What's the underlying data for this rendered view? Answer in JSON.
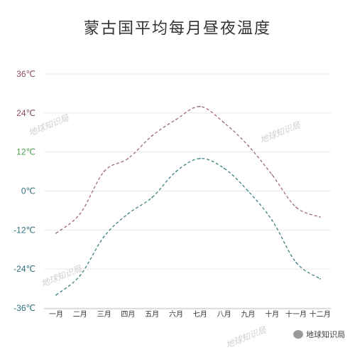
{
  "title": "蒙古国平均每月昼夜温度",
  "watermark_text": "地球知识局",
  "source_label": "地球知识局",
  "colors": {
    "day": "#9e6b72",
    "night": "#3f7f84",
    "tick_top": "#8b4b57",
    "tick_mid": "#4e9a4e",
    "tick_low": "#2e6f7c",
    "grid": "#e8e8e8"
  },
  "chart_data": {
    "type": "line",
    "categories": [
      "一月",
      "二月",
      "三月",
      "四月",
      "五月",
      "六月",
      "七月",
      "八月",
      "九月",
      "十月",
      "十一月",
      "十二月"
    ],
    "series": [
      {
        "values": [
          -13,
          -7,
          6,
          10,
          17,
          22,
          26,
          21,
          14,
          5,
          -5,
          -8
        ]
      },
      {
        "values": [
          -32,
          -26,
          -14,
          -7,
          -2,
          6,
          10,
          7,
          0,
          -9,
          -22,
          -27
        ]
      }
    ],
    "y_ticks": [
      {
        "value": 36,
        "label": "36℃"
      },
      {
        "value": 24,
        "label": "24℃"
      },
      {
        "value": 12,
        "label": "12℃"
      },
      {
        "value": 0,
        "label": "0℃"
      },
      {
        "value": -12,
        "label": "-12℃"
      },
      {
        "value": -24,
        "label": "-24℃"
      },
      {
        "value": -36,
        "label": "-36℃"
      }
    ],
    "ylim": [
      -36,
      36
    ],
    "grid": true,
    "legend": "none"
  }
}
